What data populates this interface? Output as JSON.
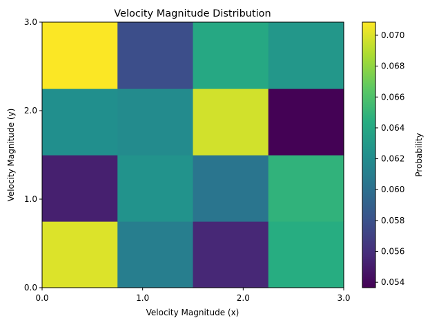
{
  "chart_data": {
    "type": "heatmap",
    "title": "Velocity Magnitude Distribution",
    "xlabel": "Velocity Magnitude (x)",
    "ylabel": "Velocity Magnitude (y)",
    "xlim": [
      0,
      3
    ],
    "ylim": [
      0,
      3
    ],
    "xticks": [
      0,
      1,
      2,
      3
    ],
    "yticks": [
      0,
      1,
      2,
      3
    ],
    "xtick_labels": [
      "0.0",
      "1.0",
      "2.0",
      "3.0"
    ],
    "ytick_labels": [
      "0.0",
      "1.0",
      "2.0",
      "3.0"
    ],
    "grid_columns": 4,
    "grid_rows": 4,
    "cells_bottom_to_top": [
      [
        0.07,
        0.061,
        0.0556,
        0.0644
      ],
      [
        0.0552,
        0.0625,
        0.0604,
        0.0648
      ],
      [
        0.0622,
        0.0619,
        0.0697,
        0.0537
      ],
      [
        0.0708,
        0.0578,
        0.064,
        0.0628
      ]
    ],
    "colorbar": {
      "label": "Probability",
      "min": 0.05365,
      "max": 0.07085,
      "ticks": [
        0.054,
        0.056,
        0.058,
        0.06,
        0.062,
        0.064,
        0.066,
        0.068,
        0.07
      ],
      "tick_labels": [
        "0.054",
        "0.056",
        "0.058",
        "0.060",
        "0.062",
        "0.064",
        "0.066",
        "0.068",
        "0.070"
      ],
      "colormap": "viridis"
    }
  }
}
